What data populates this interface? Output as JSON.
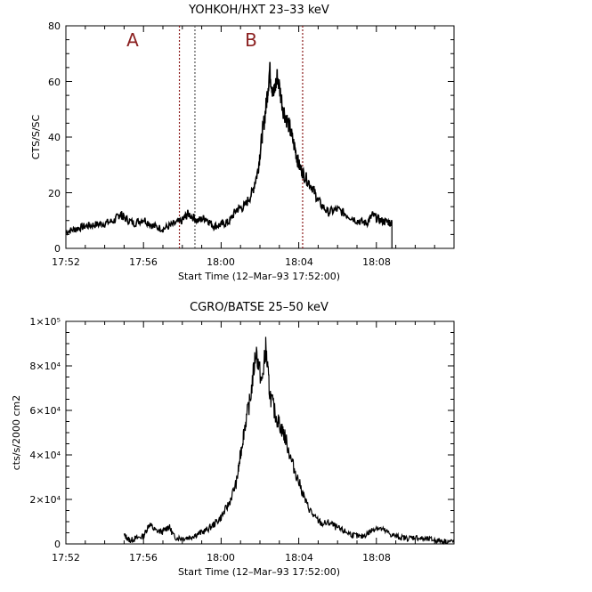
{
  "chart_data": [
    {
      "type": "line",
      "title": "YOHKOH/HXT 23–33 keV",
      "xlabel": "Start Time (12–Mar–93 17:52:00)",
      "ylabel": "CTS/S/SC",
      "xlim": [
        0,
        20
      ],
      "ylim": [
        0,
        80
      ],
      "xticks": [
        {
          "value": 0,
          "label": "17:52"
        },
        {
          "value": 4,
          "label": "17:56"
        },
        {
          "value": 8,
          "label": "18:00"
        },
        {
          "value": 12,
          "label": "18:04"
        },
        {
          "value": 16,
          "label": "18:08"
        }
      ],
      "yticks": [
        {
          "value": 0,
          "label": "0"
        },
        {
          "value": 20,
          "label": "20"
        },
        {
          "value": 40,
          "label": "40"
        },
        {
          "value": 60,
          "label": "60"
        },
        {
          "value": 80,
          "label": "80"
        }
      ],
      "series": [
        {
          "name": "HXT 23-33 keV",
          "x": [
            0,
            0.5,
            1,
            1.5,
            2,
            2.5,
            2.8,
            3,
            3.5,
            4,
            4.5,
            5,
            5.5,
            6,
            6.3,
            6.8,
            7.2,
            7.6,
            8,
            8.4,
            8.8,
            9.2,
            9.6,
            9.9,
            10.1,
            10.3,
            10.5,
            10.7,
            10.9,
            11.2,
            11.5,
            11.8,
            12,
            12.3,
            12.7,
            13,
            13.5,
            14,
            14.5,
            15,
            15.5,
            15.8,
            16.2,
            16.6,
            16.8
          ],
          "y": [
            6,
            7,
            8,
            8.5,
            9,
            10,
            12.5,
            11,
            9,
            10.5,
            8,
            7,
            8.5,
            10,
            12.5,
            10,
            11,
            8,
            8.5,
            9.5,
            14,
            15,
            20,
            28,
            40,
            50,
            64,
            55,
            62,
            50,
            44,
            36,
            30,
            26,
            22,
            17,
            13,
            14,
            12,
            10,
            9,
            12,
            10,
            9.5,
            9
          ]
        }
      ],
      "markers": [
        {
          "x": 5.85,
          "style": "dotted",
          "color": "#8b1a1a"
        },
        {
          "x": 6.65,
          "style": "dotted",
          "color": "#555555"
        },
        {
          "x": 12.2,
          "style": "dotted",
          "color": "#8b1a1a"
        }
      ],
      "annotations": [
        {
          "text": "A",
          "x": 3.2,
          "y": 72
        },
        {
          "text": "B",
          "x": 8.2,
          "y": 72
        }
      ]
    },
    {
      "type": "line",
      "title": "CGRO/BATSE 25–50 keV",
      "xlabel": "Start Time (12–Mar–93 17:52:00)",
      "ylabel": "cts/s/2000 cm2",
      "xlim": [
        0,
        20
      ],
      "ylim": [
        0,
        100000
      ],
      "xticks": [
        {
          "value": 0,
          "label": "17:52"
        },
        {
          "value": 4,
          "label": "17:56"
        },
        {
          "value": 8,
          "label": "18:00"
        },
        {
          "value": 12,
          "label": "18:04"
        },
        {
          "value": 16,
          "label": "18:08"
        }
      ],
      "yticks": [
        {
          "value": 0,
          "label": "0"
        },
        {
          "value": 20000,
          "label": "2×10⁴"
        },
        {
          "value": 40000,
          "label": "4×10⁴"
        },
        {
          "value": 60000,
          "label": "6×10⁴"
        },
        {
          "value": 80000,
          "label": "8×10⁴"
        },
        {
          "value": 100000,
          "label": "1×10⁵"
        }
      ],
      "series": [
        {
          "name": "BATSE 25-50 keV",
          "x": [
            3,
            3.3,
            3.6,
            4,
            4.3,
            4.6,
            5,
            5.3,
            5.6,
            6,
            6.4,
            6.8,
            7.2,
            7.6,
            8,
            8.4,
            8.8,
            9,
            9.2,
            9.5,
            9.8,
            10.1,
            10.3,
            10.5,
            10.8,
            11.1,
            11.3,
            11.6,
            12,
            12.4,
            12.8,
            13.2,
            13.6,
            14,
            14.4,
            14.8,
            15.2,
            15.6,
            16,
            16.4,
            16.8,
            17.2,
            17.6,
            18,
            18.4,
            18.8,
            19.2,
            19.6,
            20
          ],
          "y": [
            4000,
            1500,
            2500,
            3500,
            9000,
            6000,
            5500,
            8000,
            3000,
            2500,
            3000,
            4500,
            6000,
            8500,
            12000,
            18000,
            28000,
            40000,
            52000,
            65000,
            87000,
            72000,
            88000,
            68000,
            58000,
            52000,
            48000,
            38000,
            28000,
            18000,
            12000,
            9000,
            9500,
            7000,
            5500,
            4000,
            3000,
            5000,
            7500,
            6000,
            4000,
            3000,
            2500,
            3000,
            2200,
            2000,
            1500,
            1200,
            1000
          ]
        }
      ]
    }
  ]
}
